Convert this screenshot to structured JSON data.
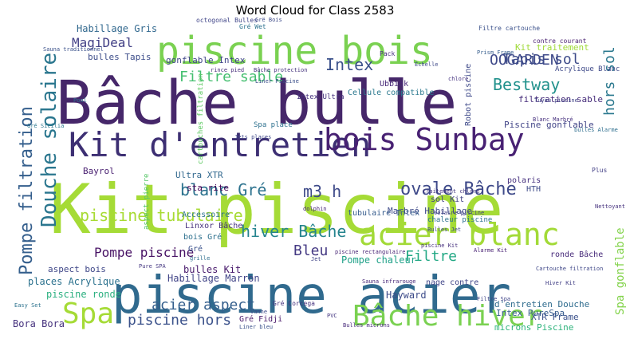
{
  "chart_data": {
    "type": "wordcloud",
    "title": "Word Cloud for Class 2583",
    "words": [
      {
        "text": "Kit piscine",
        "color": "#a5db36"
      },
      {
        "text": "piscine acier",
        "color": "#306a8e"
      },
      {
        "text": "Bâche bulle",
        "color": "#46276a"
      },
      {
        "text": "piscine bois",
        "color": "#7ad151"
      },
      {
        "text": "Kit d'entretien",
        "color": "#3d2f73"
      },
      {
        "text": "bois Sunbay",
        "color": "#482173"
      },
      {
        "text": "acier blanc",
        "color": "#a2da37"
      },
      {
        "text": "Bâche hiver",
        "color": "#7ad151"
      },
      {
        "text": "Spa",
        "color": "#a5db36"
      },
      {
        "text": "Douche solaire",
        "color": "#2a768e"
      },
      {
        "text": "Pompe filtration",
        "color": "#355f8d"
      },
      {
        "text": "piscine tubulaire",
        "color": "#a8db34"
      },
      {
        "text": "ovale Bâche",
        "color": "#3e4989"
      },
      {
        "text": "blanc Gré",
        "color": "#2c728e"
      },
      {
        "text": "m3 h",
        "color": "#3e4a89"
      },
      {
        "text": "hiver Bâche",
        "color": "#25848e"
      },
      {
        "text": "Intex",
        "color": "#3b518b"
      },
      {
        "text": "Bestway",
        "color": "#21918c"
      },
      {
        "text": "hors sol",
        "color": "#2a788e"
      },
      {
        "text": "OOGARDEN",
        "color": "#3e4989"
      },
      {
        "text": "Tapis sol",
        "color": "#3e4c8a"
      },
      {
        "text": "Filtre sable",
        "color": "#45bf70"
      },
      {
        "text": "MagiDeal",
        "color": "#424086"
      },
      {
        "text": "Spa gonflable",
        "color": "#83d34b"
      },
      {
        "text": "acier aspect",
        "color": "#355f8d"
      },
      {
        "text": "piscine hors",
        "color": "#3b528b"
      },
      {
        "text": "Pompe piscine",
        "color": "#471164"
      },
      {
        "text": "Bleu",
        "color": "#443983"
      },
      {
        "text": "Filtre",
        "color": "#22a884"
      },
      {
        "text": "Pompe chaleur",
        "color": "#1fa188"
      },
      {
        "text": "Habillage Gris",
        "color": "#31688e"
      },
      {
        "text": "Habillage Marron",
        "color": "#414487"
      },
      {
        "text": "bulles Kit",
        "color": "#481a6c"
      },
      {
        "text": "piscine ronde",
        "color": "#29af7f"
      },
      {
        "text": "places Acrylique",
        "color": "#2c728e"
      },
      {
        "text": "aspect bois",
        "color": "#3f4788"
      },
      {
        "text": "Bora Bora",
        "color": "#46327e"
      },
      {
        "text": "Hayward",
        "color": "#3e4c8a"
      },
      {
        "text": "Intex PureSpa",
        "color": "#365c8d"
      },
      {
        "text": "microns Piscine",
        "color": "#2eb37c"
      },
      {
        "text": "d'entretien Douche",
        "color": "#2f6c8e"
      },
      {
        "text": "XTR Frame",
        "color": "#3b518b"
      },
      {
        "text": "Gré Fidji",
        "color": "#48186a"
      },
      {
        "text": "Bayrol",
        "color": "#481f70"
      },
      {
        "text": "Marbré Habillage",
        "color": "#3e4a89"
      },
      {
        "text": "filtration sable",
        "color": "#472d7b"
      },
      {
        "text": "Piscine gonflable",
        "color": "#414487"
      },
      {
        "text": "Kit traitement",
        "color": "#a0da39"
      },
      {
        "text": "gonflable Intex",
        "color": "#404688"
      },
      {
        "text": "bulles Tapis",
        "color": "#3d4d8a"
      },
      {
        "text": "Ultra XTR",
        "color": "#31688e"
      },
      {
        "text": "sta rite",
        "color": "#440154"
      },
      {
        "text": "Linxor Bâche",
        "color": "#46327e"
      },
      {
        "text": "Accessoire",
        "color": "#2c728e"
      },
      {
        "text": "bois Gré",
        "color": "#2d708e"
      },
      {
        "text": "Gré",
        "color": "#3b528b"
      },
      {
        "text": "tubulaire Intex",
        "color": "#365c8d"
      },
      {
        "text": "sol Kit",
        "color": "#424186"
      },
      {
        "text": "polaris",
        "color": "#46307e"
      },
      {
        "text": "HTH",
        "color": "#3e4a89"
      },
      {
        "text": "ronde Bâche",
        "color": "#472a7a"
      },
      {
        "text": "nage contre",
        "color": "#404588"
      },
      {
        "text": "Robot piscine",
        "color": "#3e4989"
      },
      {
        "text": "Ubbink",
        "color": "#482878"
      },
      {
        "text": "Cellule compatible",
        "color": "#2a788e"
      },
      {
        "text": "Intex Ultra",
        "color": "#46327e"
      },
      {
        "text": "Spa place",
        "color": "#2d708e"
      },
      {
        "text": "aspect pierre",
        "color": "#56c667"
      },
      {
        "text": "cartouches filtration",
        "color": "#5ec962"
      },
      {
        "text": "chaleur piscine",
        "color": "#2d718e"
      },
      {
        "text": "Acrylique Blanc",
        "color": "#3e4989"
      },
      {
        "text": "Pack",
        "color": "#472f7d"
      },
      {
        "text": "contre courant",
        "color": "#481f70"
      },
      {
        "text": "Filtre cartouche",
        "color": "#3b518b"
      },
      {
        "text": "Prism Frame",
        "color": "#365d8d"
      },
      {
        "text": "Gré Wet",
        "color": "#2c728e"
      },
      {
        "text": "octogonal Bulles",
        "color": "#404588"
      },
      {
        "text": "Bâche protection",
        "color": "#45337d"
      },
      {
        "text": "Liner Piscine",
        "color": "#3c4f8a"
      },
      {
        "text": "Jets places",
        "color": "#3f4889"
      },
      {
        "text": "Gré Sicilia",
        "color": "#2a768e"
      },
      {
        "text": "Pure SPA",
        "color": "#453781"
      },
      {
        "text": "Vanne",
        "color": "#3e4c8a"
      },
      {
        "text": "Gré Corcega",
        "color": "#46327e"
      },
      {
        "text": "Sauna infrarouge",
        "color": "#482878"
      },
      {
        "text": "Cartouche filtration",
        "color": "#3f4788"
      },
      {
        "text": "Easy Set",
        "color": "#2c728e"
      },
      {
        "text": "traitement chlore",
        "color": "#453781"
      },
      {
        "text": "piscine rectangulaire",
        "color": "#482576"
      },
      {
        "text": "Bulles Jet",
        "color": "#3e4a89"
      },
      {
        "text": "piscine Kit",
        "color": "#46307e"
      },
      {
        "text": "solaire piscine",
        "color": "#424086"
      },
      {
        "text": "Pool",
        "color": "#2d708e"
      },
      {
        "text": "Sauna traditionnel",
        "color": "#3b528b"
      },
      {
        "text": "Alarme Kit",
        "color": "#482173"
      },
      {
        "text": "Filtre Spa",
        "color": "#404588"
      },
      {
        "text": "Hiver Kit",
        "color": "#423f85"
      },
      {
        "text": "bulles Alarme",
        "color": "#2e6e8e"
      },
      {
        "text": "Blanc Marbré",
        "color": "#46307e"
      },
      {
        "text": "Tuyau piscine",
        "color": "#414487"
      },
      {
        "text": "rince pied",
        "color": "#472d7b"
      },
      {
        "text": "Grë Bois",
        "color": "#3e4a89"
      },
      {
        "text": "dolphin",
        "color": "#482677"
      },
      {
        "text": "Plus",
        "color": "#423f85"
      },
      {
        "text": "PVC",
        "color": "#453781"
      },
      {
        "text": "Liner bleu",
        "color": "#3b528b"
      },
      {
        "text": "Bulles microns",
        "color": "#472a7a"
      },
      {
        "text": "Jet",
        "color": "#404588"
      },
      {
        "text": "grille",
        "color": "#2e6e8e"
      },
      {
        "text": "chlore",
        "color": "#463480"
      },
      {
        "text": "Échelle",
        "color": "#3e4989"
      },
      {
        "text": "Nettoyant",
        "color": "#46327e"
      }
    ]
  }
}
